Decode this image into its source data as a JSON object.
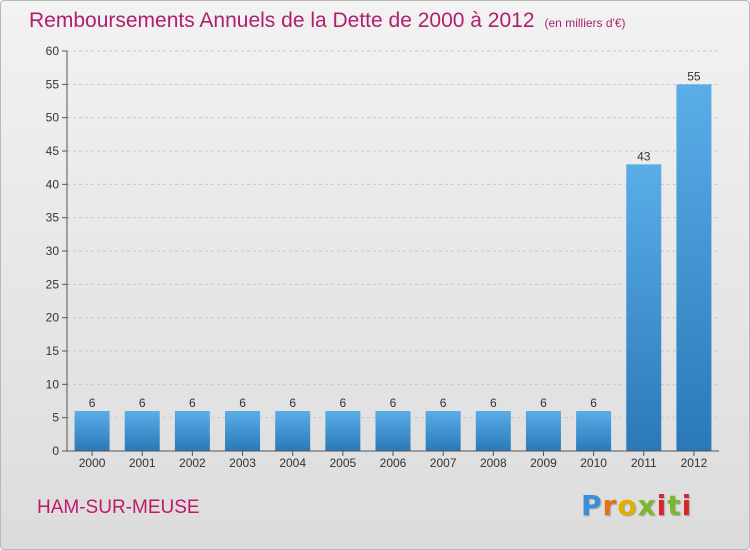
{
  "title": "Remboursements Annuels de la Dette de 2000 à 2012",
  "unit": "(en milliers d'€)",
  "place_name": "HAM-SUR-MEUSE",
  "logo_text": "Proxiti",
  "colors": {
    "title": "#b01e6e",
    "bar_top": "#5aaee8",
    "bar_bottom": "#2a78b8",
    "grid": "#c8c8c8"
  },
  "chart_data": {
    "type": "bar",
    "categories": [
      "2000",
      "2001",
      "2002",
      "2003",
      "2004",
      "2005",
      "2006",
      "2007",
      "2008",
      "2009",
      "2010",
      "2011",
      "2012"
    ],
    "values": [
      6,
      6,
      6,
      6,
      6,
      6,
      6,
      6,
      6,
      6,
      6,
      43,
      55
    ],
    "data_labels": [
      "6",
      "6",
      "6",
      "6",
      "6",
      "6",
      "6",
      "6",
      "6",
      "6",
      "6",
      "43",
      "55"
    ],
    "yticks": [
      "0",
      "5",
      "10",
      "15",
      "20",
      "25",
      "30",
      "35",
      "40",
      "45",
      "50",
      "55",
      "60"
    ],
    "ylim": [
      0,
      60
    ],
    "grid": true
  }
}
